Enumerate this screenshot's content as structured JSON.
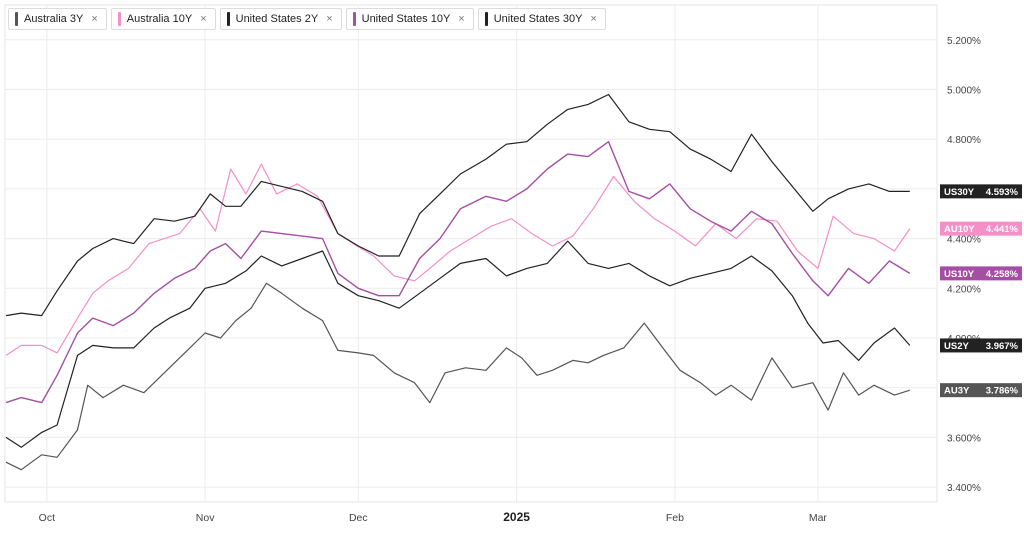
{
  "legend": [
    {
      "label": "Australia 3Y",
      "color": "#555555"
    },
    {
      "label": "Australia 10Y",
      "color": "#f48fc7"
    },
    {
      "label": "United States 2Y",
      "color": "#222222"
    },
    {
      "label": "United States 10Y",
      "color": "#a44ea4"
    },
    {
      "label": "United States 30Y",
      "color": "#222222"
    }
  ],
  "close_glyph": "×",
  "chart_data": {
    "type": "line",
    "x_start": "2024-09-23",
    "x_end": "2025-03-21",
    "x_ticks": [
      {
        "label": "Oct",
        "date": "2024-10-01",
        "bold": false
      },
      {
        "label": "Nov",
        "date": "2024-11-01",
        "bold": false
      },
      {
        "label": "Dec",
        "date": "2024-12-01",
        "bold": false
      },
      {
        "label": "2025",
        "date": "2025-01-01",
        "bold": true
      },
      {
        "label": "Feb",
        "date": "2025-02-01",
        "bold": false
      },
      {
        "label": "Mar",
        "date": "2025-03-01",
        "bold": false
      }
    ],
    "y_ticks": [
      "3.400%",
      "3.600%",
      "3.800%",
      "4.000%",
      "4.200%",
      "4.400%",
      "4.600%",
      "4.800%",
      "5.000%",
      "5.200%"
    ],
    "y_tick_values": [
      3.4,
      3.6,
      3.8,
      4.0,
      4.2,
      4.4,
      4.6,
      4.8,
      5.0,
      5.2
    ],
    "ylim": [
      3.34,
      5.34
    ],
    "grid": true,
    "legend_position": "top-left",
    "series": [
      {
        "name": "Australia 3Y",
        "short": "AU3Y",
        "last_label": "3.786%",
        "color": "#555555",
        "width": 1.2,
        "points": [
          [
            "2024-09-23",
            3.5
          ],
          [
            "2024-09-26",
            3.47
          ],
          [
            "2024-09-30",
            3.53
          ],
          [
            "2024-10-03",
            3.52
          ],
          [
            "2024-10-07",
            3.63
          ],
          [
            "2024-10-09",
            3.81
          ],
          [
            "2024-10-12",
            3.76
          ],
          [
            "2024-10-16",
            3.81
          ],
          [
            "2024-10-20",
            3.78
          ],
          [
            "2024-10-24",
            3.86
          ],
          [
            "2024-10-28",
            3.94
          ],
          [
            "2024-11-01",
            4.02
          ],
          [
            "2024-11-04",
            4.0
          ],
          [
            "2024-11-07",
            4.07
          ],
          [
            "2024-11-10",
            4.12
          ],
          [
            "2024-11-13",
            4.22
          ],
          [
            "2024-11-16",
            4.18
          ],
          [
            "2024-11-20",
            4.12
          ],
          [
            "2024-11-24",
            4.07
          ],
          [
            "2024-11-27",
            3.95
          ],
          [
            "2024-12-01",
            3.94
          ],
          [
            "2024-12-04",
            3.93
          ],
          [
            "2024-12-08",
            3.86
          ],
          [
            "2024-12-12",
            3.82
          ],
          [
            "2024-12-15",
            3.74
          ],
          [
            "2024-12-18",
            3.86
          ],
          [
            "2024-12-22",
            3.88
          ],
          [
            "2024-12-26",
            3.87
          ],
          [
            "2024-12-30",
            3.96
          ],
          [
            "2025-01-02",
            3.92
          ],
          [
            "2025-01-05",
            3.85
          ],
          [
            "2025-01-08",
            3.87
          ],
          [
            "2025-01-12",
            3.91
          ],
          [
            "2025-01-15",
            3.9
          ],
          [
            "2025-01-18",
            3.93
          ],
          [
            "2025-01-22",
            3.96
          ],
          [
            "2025-01-26",
            4.06
          ],
          [
            "2025-01-30",
            3.95
          ],
          [
            "2025-02-02",
            3.87
          ],
          [
            "2025-02-06",
            3.82
          ],
          [
            "2025-02-09",
            3.77
          ],
          [
            "2025-02-12",
            3.81
          ],
          [
            "2025-02-16",
            3.75
          ],
          [
            "2025-02-20",
            3.92
          ],
          [
            "2025-02-24",
            3.8
          ],
          [
            "2025-02-28",
            3.82
          ],
          [
            "2025-03-03",
            3.71
          ],
          [
            "2025-03-06",
            3.86
          ],
          [
            "2025-03-09",
            3.77
          ],
          [
            "2025-03-12",
            3.81
          ],
          [
            "2025-03-16",
            3.77
          ],
          [
            "2025-03-19",
            3.79
          ]
        ]
      },
      {
        "name": "Australia 10Y",
        "short": "AU10Y",
        "last_label": "4.441%",
        "color": "#f48fc7",
        "width": 1.2,
        "points": [
          [
            "2024-09-23",
            3.93
          ],
          [
            "2024-09-26",
            3.97
          ],
          [
            "2024-09-30",
            3.97
          ],
          [
            "2024-10-03",
            3.94
          ],
          [
            "2024-10-07",
            4.08
          ],
          [
            "2024-10-10",
            4.18
          ],
          [
            "2024-10-13",
            4.23
          ],
          [
            "2024-10-17",
            4.28
          ],
          [
            "2024-10-21",
            4.38
          ],
          [
            "2024-10-24",
            4.4
          ],
          [
            "2024-10-27",
            4.42
          ],
          [
            "2024-10-31",
            4.52
          ],
          [
            "2024-11-03",
            4.43
          ],
          [
            "2024-11-06",
            4.68
          ],
          [
            "2024-11-09",
            4.58
          ],
          [
            "2024-11-12",
            4.7
          ],
          [
            "2024-11-15",
            4.58
          ],
          [
            "2024-11-19",
            4.62
          ],
          [
            "2024-11-23",
            4.57
          ],
          [
            "2024-11-27",
            4.42
          ],
          [
            "2024-11-30",
            4.38
          ],
          [
            "2024-12-04",
            4.33
          ],
          [
            "2024-12-08",
            4.25
          ],
          [
            "2024-12-12",
            4.23
          ],
          [
            "2024-12-15",
            4.28
          ],
          [
            "2024-12-19",
            4.35
          ],
          [
            "2024-12-23",
            4.4
          ],
          [
            "2024-12-27",
            4.45
          ],
          [
            "2024-12-31",
            4.48
          ],
          [
            "2025-01-04",
            4.42
          ],
          [
            "2025-01-08",
            4.37
          ],
          [
            "2025-01-12",
            4.41
          ],
          [
            "2025-01-16",
            4.52
          ],
          [
            "2025-01-20",
            4.65
          ],
          [
            "2025-01-24",
            4.55
          ],
          [
            "2025-01-28",
            4.48
          ],
          [
            "2025-02-01",
            4.43
          ],
          [
            "2025-02-05",
            4.37
          ],
          [
            "2025-02-09",
            4.46
          ],
          [
            "2025-02-13",
            4.4
          ],
          [
            "2025-02-17",
            4.48
          ],
          [
            "2025-02-21",
            4.47
          ],
          [
            "2025-02-25",
            4.35
          ],
          [
            "2025-03-01",
            4.28
          ],
          [
            "2025-03-04",
            4.49
          ],
          [
            "2025-03-08",
            4.42
          ],
          [
            "2025-03-12",
            4.4
          ],
          [
            "2025-03-16",
            4.35
          ],
          [
            "2025-03-19",
            4.44
          ]
        ]
      },
      {
        "name": "United States 2Y",
        "short": "US2Y",
        "last_label": "3.967%",
        "color": "#222222",
        "width": 1.2,
        "points": [
          [
            "2024-09-23",
            3.6
          ],
          [
            "2024-09-26",
            3.56
          ],
          [
            "2024-09-30",
            3.62
          ],
          [
            "2024-10-03",
            3.65
          ],
          [
            "2024-10-07",
            3.93
          ],
          [
            "2024-10-10",
            3.97
          ],
          [
            "2024-10-14",
            3.96
          ],
          [
            "2024-10-18",
            3.96
          ],
          [
            "2024-10-22",
            4.04
          ],
          [
            "2024-10-25",
            4.08
          ],
          [
            "2024-10-29",
            4.12
          ],
          [
            "2024-11-01",
            4.2
          ],
          [
            "2024-11-05",
            4.22
          ],
          [
            "2024-11-09",
            4.27
          ],
          [
            "2024-11-12",
            4.33
          ],
          [
            "2024-11-16",
            4.29
          ],
          [
            "2024-11-20",
            4.32
          ],
          [
            "2024-11-24",
            4.35
          ],
          [
            "2024-11-27",
            4.22
          ],
          [
            "2024-12-01",
            4.17
          ],
          [
            "2024-12-05",
            4.15
          ],
          [
            "2024-12-09",
            4.12
          ],
          [
            "2024-12-13",
            4.18
          ],
          [
            "2024-12-17",
            4.24
          ],
          [
            "2024-12-21",
            4.3
          ],
          [
            "2024-12-26",
            4.32
          ],
          [
            "2024-12-30",
            4.25
          ],
          [
            "2025-01-03",
            4.28
          ],
          [
            "2025-01-07",
            4.3
          ],
          [
            "2025-01-11",
            4.39
          ],
          [
            "2025-01-15",
            4.3
          ],
          [
            "2025-01-19",
            4.28
          ],
          [
            "2025-01-23",
            4.3
          ],
          [
            "2025-01-27",
            4.25
          ],
          [
            "2025-01-31",
            4.21
          ],
          [
            "2025-02-04",
            4.24
          ],
          [
            "2025-02-08",
            4.26
          ],
          [
            "2025-02-12",
            4.28
          ],
          [
            "2025-02-16",
            4.33
          ],
          [
            "2025-02-20",
            4.27
          ],
          [
            "2025-02-24",
            4.17
          ],
          [
            "2025-02-27",
            4.06
          ],
          [
            "2025-03-02",
            3.98
          ],
          [
            "2025-03-05",
            3.99
          ],
          [
            "2025-03-09",
            3.91
          ],
          [
            "2025-03-12",
            3.98
          ],
          [
            "2025-03-16",
            4.04
          ],
          [
            "2025-03-19",
            3.97
          ]
        ]
      },
      {
        "name": "United States 10Y",
        "short": "US10Y",
        "last_label": "4.258%",
        "color": "#a44ea4",
        "width": 1.4,
        "points": [
          [
            "2024-09-23",
            3.74
          ],
          [
            "2024-09-26",
            3.76
          ],
          [
            "2024-09-30",
            3.74
          ],
          [
            "2024-10-03",
            3.85
          ],
          [
            "2024-10-07",
            4.02
          ],
          [
            "2024-10-10",
            4.08
          ],
          [
            "2024-10-14",
            4.05
          ],
          [
            "2024-10-18",
            4.1
          ],
          [
            "2024-10-22",
            4.18
          ],
          [
            "2024-10-26",
            4.24
          ],
          [
            "2024-10-30",
            4.28
          ],
          [
            "2024-11-02",
            4.35
          ],
          [
            "2024-11-05",
            4.38
          ],
          [
            "2024-11-08",
            4.32
          ],
          [
            "2024-11-12",
            4.43
          ],
          [
            "2024-11-16",
            4.42
          ],
          [
            "2024-11-20",
            4.41
          ],
          [
            "2024-11-24",
            4.4
          ],
          [
            "2024-11-27",
            4.26
          ],
          [
            "2024-12-01",
            4.2
          ],
          [
            "2024-12-05",
            4.17
          ],
          [
            "2024-12-09",
            4.17
          ],
          [
            "2024-12-13",
            4.32
          ],
          [
            "2024-12-17",
            4.4
          ],
          [
            "2024-12-21",
            4.52
          ],
          [
            "2024-12-26",
            4.57
          ],
          [
            "2024-12-30",
            4.55
          ],
          [
            "2025-01-03",
            4.6
          ],
          [
            "2025-01-07",
            4.68
          ],
          [
            "2025-01-11",
            4.74
          ],
          [
            "2025-01-15",
            4.73
          ],
          [
            "2025-01-19",
            4.79
          ],
          [
            "2025-01-23",
            4.59
          ],
          [
            "2025-01-27",
            4.56
          ],
          [
            "2025-01-31",
            4.62
          ],
          [
            "2025-02-04",
            4.52
          ],
          [
            "2025-02-08",
            4.47
          ],
          [
            "2025-02-12",
            4.43
          ],
          [
            "2025-02-16",
            4.51
          ],
          [
            "2025-02-20",
            4.46
          ],
          [
            "2025-02-24",
            4.34
          ],
          [
            "2025-02-28",
            4.23
          ],
          [
            "2025-03-03",
            4.17
          ],
          [
            "2025-03-07",
            4.28
          ],
          [
            "2025-03-11",
            4.22
          ],
          [
            "2025-03-15",
            4.31
          ],
          [
            "2025-03-19",
            4.26
          ]
        ]
      },
      {
        "name": "United States 30Y",
        "short": "US30Y",
        "last_label": "4.593%",
        "color": "#222222",
        "width": 1.2,
        "points": [
          [
            "2024-09-23",
            4.09
          ],
          [
            "2024-09-26",
            4.1
          ],
          [
            "2024-09-30",
            4.09
          ],
          [
            "2024-10-03",
            4.19
          ],
          [
            "2024-10-07",
            4.31
          ],
          [
            "2024-10-10",
            4.36
          ],
          [
            "2024-10-14",
            4.4
          ],
          [
            "2024-10-18",
            4.38
          ],
          [
            "2024-10-22",
            4.48
          ],
          [
            "2024-10-26",
            4.47
          ],
          [
            "2024-10-30",
            4.49
          ],
          [
            "2024-11-02",
            4.58
          ],
          [
            "2024-11-05",
            4.53
          ],
          [
            "2024-11-08",
            4.53
          ],
          [
            "2024-11-12",
            4.63
          ],
          [
            "2024-11-16",
            4.61
          ],
          [
            "2024-11-20",
            4.59
          ],
          [
            "2024-11-24",
            4.55
          ],
          [
            "2024-11-27",
            4.42
          ],
          [
            "2024-12-01",
            4.37
          ],
          [
            "2024-12-05",
            4.33
          ],
          [
            "2024-12-09",
            4.33
          ],
          [
            "2024-12-13",
            4.5
          ],
          [
            "2024-12-17",
            4.58
          ],
          [
            "2024-12-21",
            4.66
          ],
          [
            "2024-12-26",
            4.72
          ],
          [
            "2024-12-30",
            4.78
          ],
          [
            "2025-01-03",
            4.79
          ],
          [
            "2025-01-07",
            4.86
          ],
          [
            "2025-01-11",
            4.92
          ],
          [
            "2025-01-15",
            4.94
          ],
          [
            "2025-01-19",
            4.98
          ],
          [
            "2025-01-23",
            4.87
          ],
          [
            "2025-01-27",
            4.84
          ],
          [
            "2025-01-31",
            4.83
          ],
          [
            "2025-02-04",
            4.76
          ],
          [
            "2025-02-08",
            4.72
          ],
          [
            "2025-02-12",
            4.67
          ],
          [
            "2025-02-16",
            4.82
          ],
          [
            "2025-02-20",
            4.71
          ],
          [
            "2025-02-24",
            4.61
          ],
          [
            "2025-02-28",
            4.51
          ],
          [
            "2025-03-03",
            4.56
          ],
          [
            "2025-03-07",
            4.6
          ],
          [
            "2025-03-11",
            4.62
          ],
          [
            "2025-03-15",
            4.59
          ],
          [
            "2025-03-19",
            4.59
          ]
        ]
      }
    ]
  }
}
